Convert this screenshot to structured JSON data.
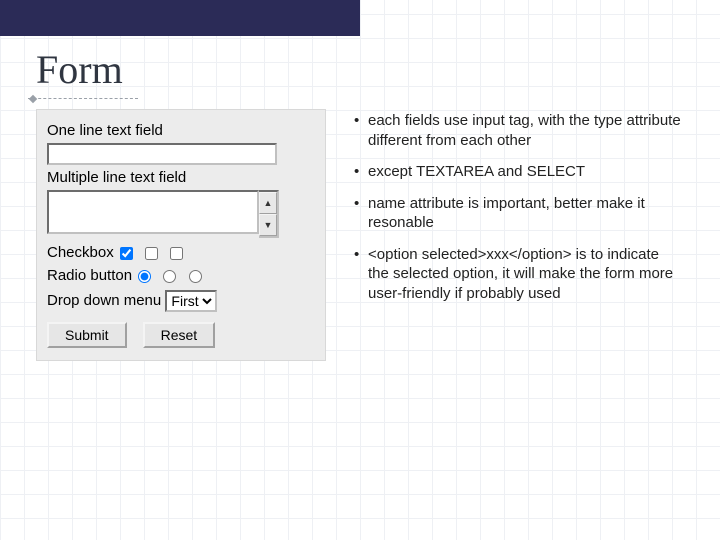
{
  "colors": {
    "topbar": "#2b2b57",
    "grid": "#eef0f4",
    "demo_bg": "#ececec",
    "text": "#222222"
  },
  "heading": "Form",
  "bullets": [
    "each fields use input tag, with the type attribute different from each other",
    "except TEXTAREA and SELECT",
    "name attribute is important, better make it resonable",
    "<option selected>xxx</option> is to indicate the selected option, it will make the form more user-friendly if probably used"
  ],
  "form": {
    "one_line_label": "One line text field",
    "one_line_value": "",
    "multi_line_label": "Multiple line text field",
    "multi_line_value": "",
    "checkbox_label": "Checkbox",
    "checkbox_states": [
      true,
      false,
      false
    ],
    "radio_label": "Radio button",
    "radio_states": [
      true,
      false,
      false
    ],
    "dropdown_label": "Drop down menu",
    "dropdown_selected": "First",
    "submit_label": "Submit",
    "reset_label": "Reset"
  }
}
